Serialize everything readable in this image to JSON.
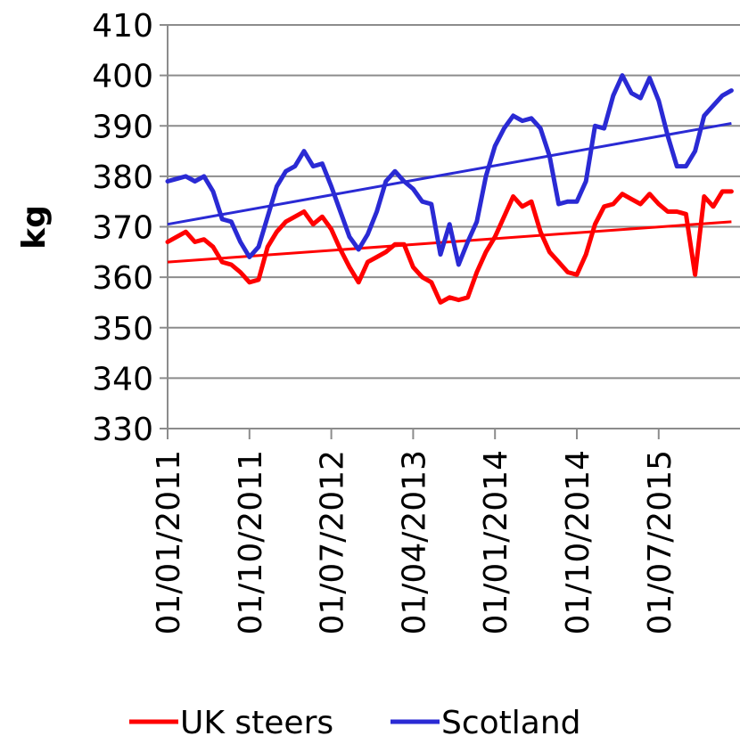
{
  "chart_data": {
    "type": "line",
    "title": "",
    "xlabel": "",
    "ylabel": "kg",
    "ylim": [
      330,
      410
    ],
    "y_ticks": [
      330,
      340,
      350,
      360,
      370,
      380,
      390,
      400,
      410
    ],
    "x_tick_labels": [
      "01/01/2011",
      "01/10/2011",
      "01/07/2012",
      "01/04/2013",
      "01/01/2014",
      "01/10/2014",
      "01/07/2015"
    ],
    "x": [
      "2011-01",
      "2011-02",
      "2011-03",
      "2011-04",
      "2011-05",
      "2011-06",
      "2011-07",
      "2011-08",
      "2011-09",
      "2011-10",
      "2011-11",
      "2011-12",
      "2012-01",
      "2012-02",
      "2012-03",
      "2012-04",
      "2012-05",
      "2012-06",
      "2012-07",
      "2012-08",
      "2012-09",
      "2012-10",
      "2012-11",
      "2012-12",
      "2013-01",
      "2013-02",
      "2013-03",
      "2013-04",
      "2013-05",
      "2013-06",
      "2013-07",
      "2013-08",
      "2013-09",
      "2013-10",
      "2013-11",
      "2013-12",
      "2014-01",
      "2014-02",
      "2014-03",
      "2014-04",
      "2014-05",
      "2014-06",
      "2014-07",
      "2014-08",
      "2014-09",
      "2014-10",
      "2014-11",
      "2014-12",
      "2015-01",
      "2015-02",
      "2015-03",
      "2015-04",
      "2015-05",
      "2015-06",
      "2015-07",
      "2015-08",
      "2015-09",
      "2015-10",
      "2015-11",
      "2015-12",
      "2016-01",
      "2016-02",
      "2016-03"
    ],
    "grid": "horizontal",
    "legend_position": "bottom",
    "series": [
      {
        "name": "UK steers",
        "color": "#ff0000",
        "values": [
          367,
          368,
          369,
          367,
          367.5,
          366,
          363,
          362.5,
          361,
          359,
          359.5,
          366,
          369,
          371,
          372,
          373,
          370.5,
          372,
          369.5,
          365.5,
          362,
          359,
          363,
          364,
          365,
          366.5,
          366.5,
          362,
          360,
          359,
          355,
          356,
          355.5,
          356,
          361,
          365,
          368,
          372,
          376,
          374,
          375,
          369,
          365,
          363,
          361,
          360.5,
          364.5,
          370.5,
          374,
          374.5,
          376.5,
          375.5,
          374.5,
          376.5,
          374.5,
          373,
          373,
          372.5,
          360.5,
          376,
          374,
          377,
          377
        ]
      },
      {
        "name": "Scotland",
        "color": "#2a2ad4",
        "values": [
          379,
          379.5,
          380,
          379,
          380,
          377,
          371.5,
          371,
          367,
          364,
          366,
          372,
          378,
          381,
          382,
          385,
          382,
          382.5,
          378,
          373,
          368,
          365.5,
          368.5,
          373,
          379,
          381,
          379,
          377.5,
          375,
          374.5,
          364.5,
          370.5,
          362.5,
          367,
          371,
          380,
          386,
          389.5,
          392,
          391,
          391.5,
          389.5,
          384,
          374.5,
          375,
          375,
          379,
          390,
          389.5,
          396,
          400,
          396.5,
          395.5,
          399.5,
          395,
          388,
          382,
          382,
          385,
          392,
          394,
          396,
          397
        ]
      }
    ],
    "trendlines": [
      {
        "series": "UK steers",
        "color": "#ff0000",
        "start": 363,
        "end": 371
      },
      {
        "series": "Scotland",
        "color": "#2a2ad4",
        "start": 370.5,
        "end": 390.5
      }
    ]
  }
}
